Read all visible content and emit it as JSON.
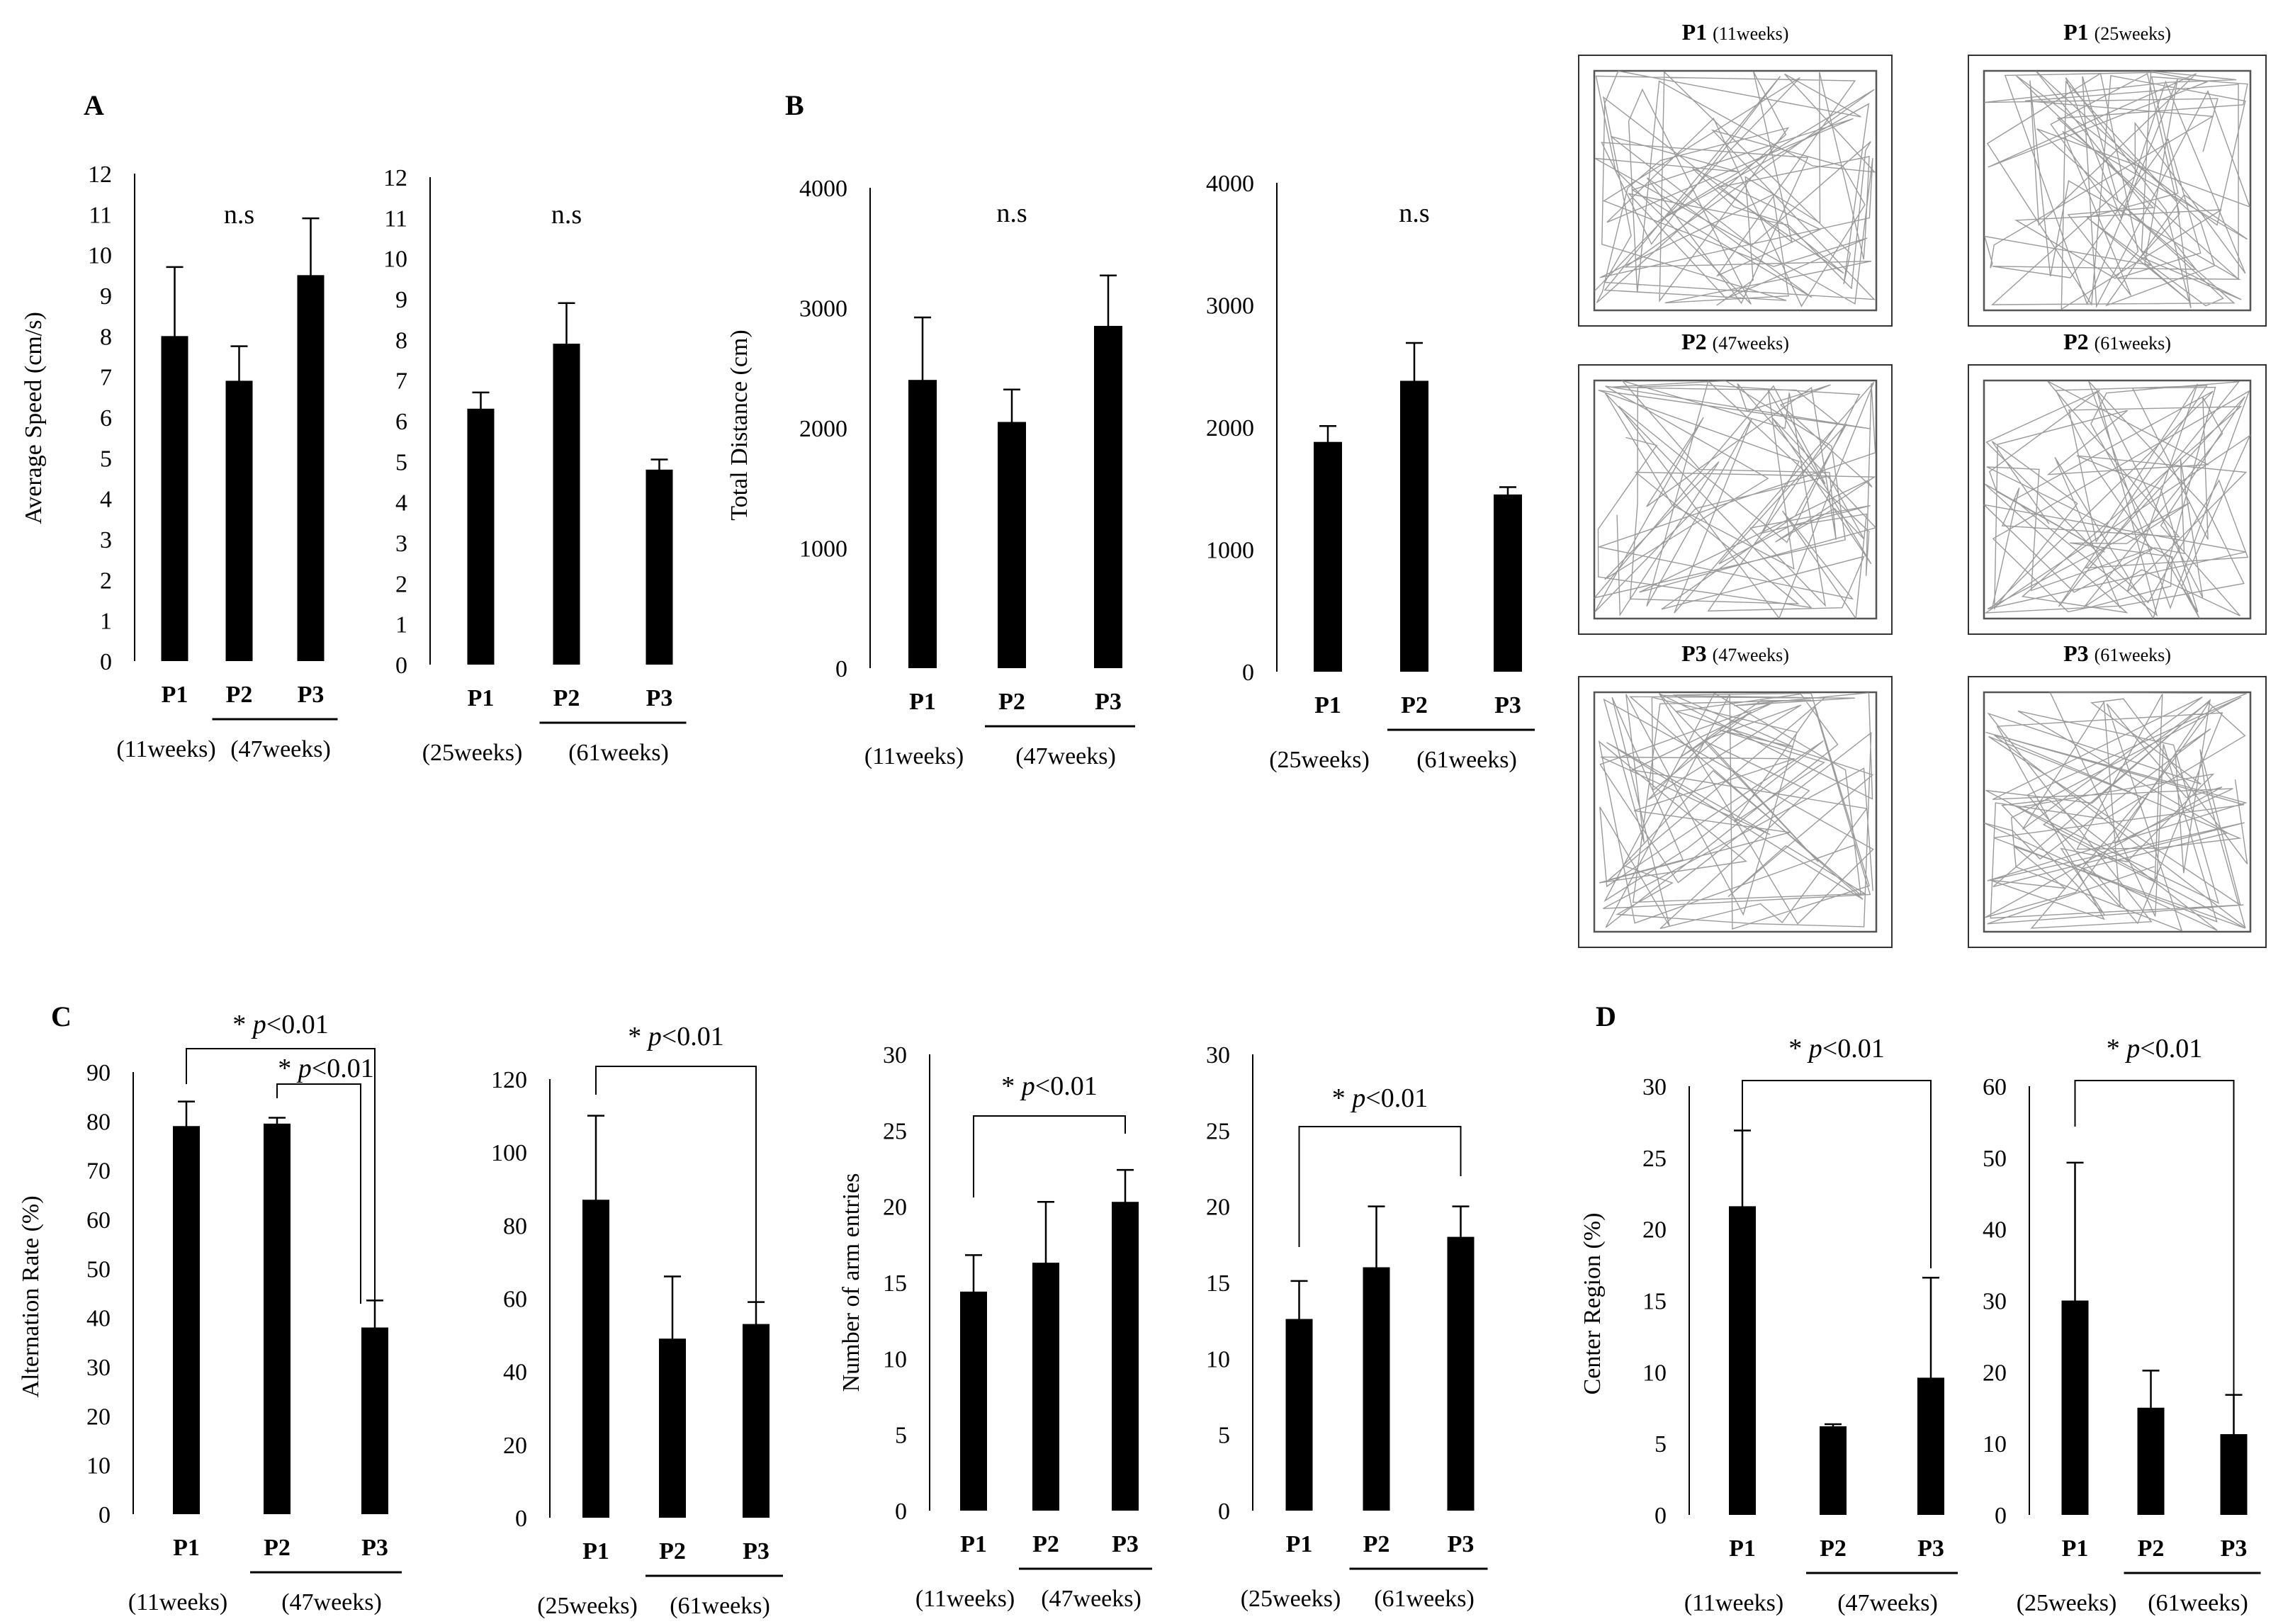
{
  "panel_letters": {
    "A": "A",
    "B": "B",
    "C": "C",
    "D": "D"
  },
  "sig_text": {
    "star": "* ",
    "p": "p",
    "rest": "<0.01"
  },
  "chart_data": [
    {
      "id": "A1",
      "type": "bar",
      "categories": [
        "P1",
        "P2",
        "P3"
      ],
      "values": [
        8.0,
        6.9,
        9.5
      ],
      "errors": [
        1.7,
        0.85,
        1.4
      ],
      "ylim": [
        0,
        12
      ],
      "yticks": [
        "0",
        "1",
        "2",
        "3",
        "4",
        "5",
        "6",
        "7",
        "8",
        "9",
        "10",
        "11",
        "12"
      ],
      "ylabel": "Average Speed (cm/s)",
      "annotation": "n.s",
      "sublabels": [
        "(11weeks)",
        "(47weeks)"
      ]
    },
    {
      "id": "A2",
      "type": "bar",
      "categories": [
        "P1",
        "P2",
        "P3"
      ],
      "values": [
        6.3,
        7.9,
        4.8
      ],
      "errors": [
        0.4,
        1.0,
        0.25
      ],
      "ylim": [
        0,
        12
      ],
      "yticks": [
        "0",
        "1",
        "2",
        "3",
        "4",
        "5",
        "6",
        "7",
        "8",
        "9",
        "10",
        "11",
        "12"
      ],
      "ylabel": "",
      "annotation": "n.s",
      "sublabels": [
        "(25weeks)",
        "(61weeks)"
      ]
    },
    {
      "id": "B1",
      "type": "bar",
      "categories": [
        "P1",
        "P2",
        "P3"
      ],
      "values": [
        2400,
        2050,
        2850
      ],
      "errors": [
        520,
        270,
        420
      ],
      "ylim": [
        0,
        4000
      ],
      "yticks": [
        "0",
        "1000",
        "2000",
        "3000",
        "4000"
      ],
      "ylabel": "Total Distance (cm)",
      "annotation": "n.s",
      "sublabels": [
        "(11weeks)",
        "(47weeks)"
      ]
    },
    {
      "id": "B2",
      "type": "bar",
      "categories": [
        "P1",
        "P2",
        "P3"
      ],
      "values": [
        1880,
        2380,
        1450
      ],
      "errors": [
        130,
        310,
        60
      ],
      "ylim": [
        0,
        4000
      ],
      "yticks": [
        "0",
        "1000",
        "2000",
        "3000",
        "4000"
      ],
      "ylabel": "",
      "annotation": "n.s",
      "sublabels": [
        "(25weeks)",
        "(61weeks)"
      ]
    },
    {
      "id": "C1",
      "type": "bar",
      "categories": [
        "P1",
        "P2",
        "P3"
      ],
      "values": [
        79,
        79.5,
        38
      ],
      "errors": [
        5,
        1.2,
        5.5
      ],
      "ylim": [
        0,
        90
      ],
      "yticks": [
        "0",
        "10",
        "20",
        "30",
        "40",
        "50",
        "60",
        "70",
        "80",
        "90"
      ],
      "ylabel": "Alternation Rate (%)",
      "sublabels": [
        "(11weeks)",
        "(47weeks)"
      ]
    },
    {
      "id": "C2",
      "type": "bar",
      "categories": [
        "P1",
        "P2",
        "P3"
      ],
      "values": [
        87,
        49,
        53
      ],
      "errors": [
        23,
        17,
        6
      ],
      "ylim": [
        0,
        120
      ],
      "yticks": [
        "0",
        "20",
        "40",
        "60",
        "80",
        "100",
        "120"
      ],
      "ylabel": "",
      "sublabels": [
        "(25weeks)",
        "(61weeks)"
      ]
    },
    {
      "id": "C3",
      "type": "bar",
      "categories": [
        "P1",
        "P2",
        "P3"
      ],
      "values": [
        14.4,
        16.3,
        20.3
      ],
      "errors": [
        2.4,
        4.0,
        2.1
      ],
      "ylim": [
        0,
        30
      ],
      "yticks": [
        "0",
        "5",
        "10",
        "15",
        "20",
        "25",
        "30"
      ],
      "ylabel": "Number of arm entries",
      "sublabels": [
        "(11weeks)",
        "(47weeks)"
      ]
    },
    {
      "id": "C4",
      "type": "bar",
      "categories": [
        "P1",
        "P2",
        "P3"
      ],
      "values": [
        12.6,
        16.0,
        18.0
      ],
      "errors": [
        2.5,
        4.0,
        2.0
      ],
      "ylim": [
        0,
        30
      ],
      "yticks": [
        "0",
        "5",
        "10",
        "15",
        "20",
        "25",
        "30"
      ],
      "ylabel": "",
      "sublabels": [
        "(25weeks)",
        "(61weeks)"
      ]
    },
    {
      "id": "D1",
      "type": "bar",
      "categories": [
        "P1",
        "P2",
        "P3"
      ],
      "values": [
        21.6,
        6.2,
        9.6
      ],
      "errors": [
        5.3,
        0.15,
        7.0
      ],
      "ylim": [
        0,
        30
      ],
      "yticks": [
        "0",
        "5",
        "10",
        "15",
        "20",
        "25",
        "30"
      ],
      "ylabel": "Center Region (%)",
      "sublabels": [
        "(11weeks)",
        "(47weeks)"
      ]
    },
    {
      "id": "D2",
      "type": "bar",
      "categories": [
        "P1",
        "P2",
        "P3"
      ],
      "values": [
        30,
        15,
        11.3
      ],
      "errors": [
        19.3,
        5.2,
        5.5
      ],
      "ylim": [
        0,
        60
      ],
      "yticks": [
        "0",
        "10",
        "20",
        "30",
        "40",
        "50",
        "60"
      ],
      "ylabel": "",
      "sublabels": [
        "(25weeks)",
        "(61weeks)"
      ]
    }
  ],
  "tracks": [
    {
      "label": "P1",
      "sub": "(11weeks)"
    },
    {
      "label": "P1",
      "sub": "(25weeks)"
    },
    {
      "label": "P2",
      "sub": "(47weeks)"
    },
    {
      "label": "P2",
      "sub": "(61weeks)"
    },
    {
      "label": "P3",
      "sub": "(47weeks)"
    },
    {
      "label": "P3",
      "sub": "(61weeks)"
    }
  ]
}
